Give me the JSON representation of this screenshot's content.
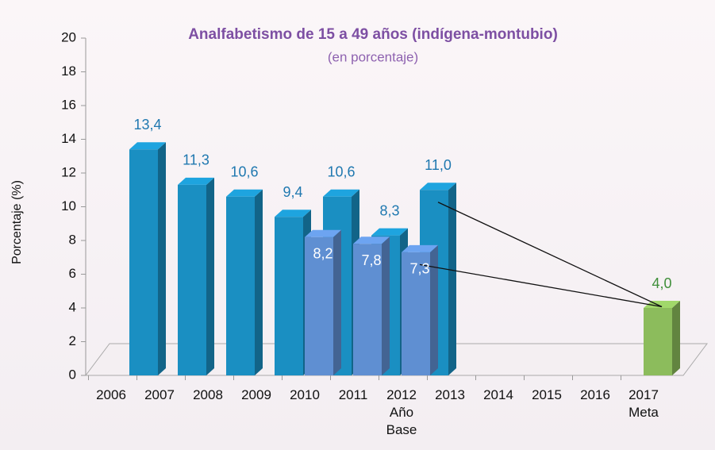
{
  "chart_data": {
    "type": "bar3d",
    "title": "Analfabetismo de 15 a 49 años (indígena-montubio)",
    "subtitle": "(en porcentaje)",
    "y_label": "Porcentaje (%)",
    "categories": [
      "2006",
      "2007",
      "2008",
      "2009",
      "2010",
      "2011",
      "2012\nAño\nBase",
      "2013",
      "2014",
      "2015",
      "2016",
      "2017\nMeta"
    ],
    "series": [
      {
        "color": "#1a8fc2",
        "label_color": "#1f78b0",
        "offset": "back",
        "values": [
          null,
          13.4,
          11.3,
          10.6,
          9.4,
          10.6,
          8.3,
          11.0,
          null,
          null,
          null,
          null
        ],
        "value_labels": [
          null,
          "13,4",
          "11,3",
          "10,6",
          "9,4",
          "10,6",
          "8,3",
          "11,0",
          null,
          null,
          null,
          null
        ]
      },
      {
        "color": "#5f8fd2",
        "label_color": "#ffffff",
        "offset": "front",
        "values": [
          null,
          null,
          null,
          null,
          8.2,
          7.8,
          7.3,
          null,
          null,
          null,
          null,
          null
        ],
        "value_labels": [
          null,
          null,
          null,
          null,
          "8,2",
          "7,8",
          "7,3",
          null,
          null,
          null,
          null,
          null
        ]
      },
      {
        "color": "#8cbc5c",
        "label_color": "#3f8f3a",
        "offset": "front",
        "values": [
          null,
          null,
          null,
          null,
          null,
          null,
          null,
          null,
          null,
          null,
          null,
          4.0
        ],
        "value_labels": [
          null,
          null,
          null,
          null,
          null,
          null,
          null,
          null,
          null,
          null,
          null,
          "4,0"
        ]
      }
    ],
    "ylim": [
      0,
      20
    ],
    "yticks": [
      0,
      2,
      4,
      6,
      8,
      10,
      12,
      14,
      16,
      18,
      20
    ],
    "grid": false
  }
}
